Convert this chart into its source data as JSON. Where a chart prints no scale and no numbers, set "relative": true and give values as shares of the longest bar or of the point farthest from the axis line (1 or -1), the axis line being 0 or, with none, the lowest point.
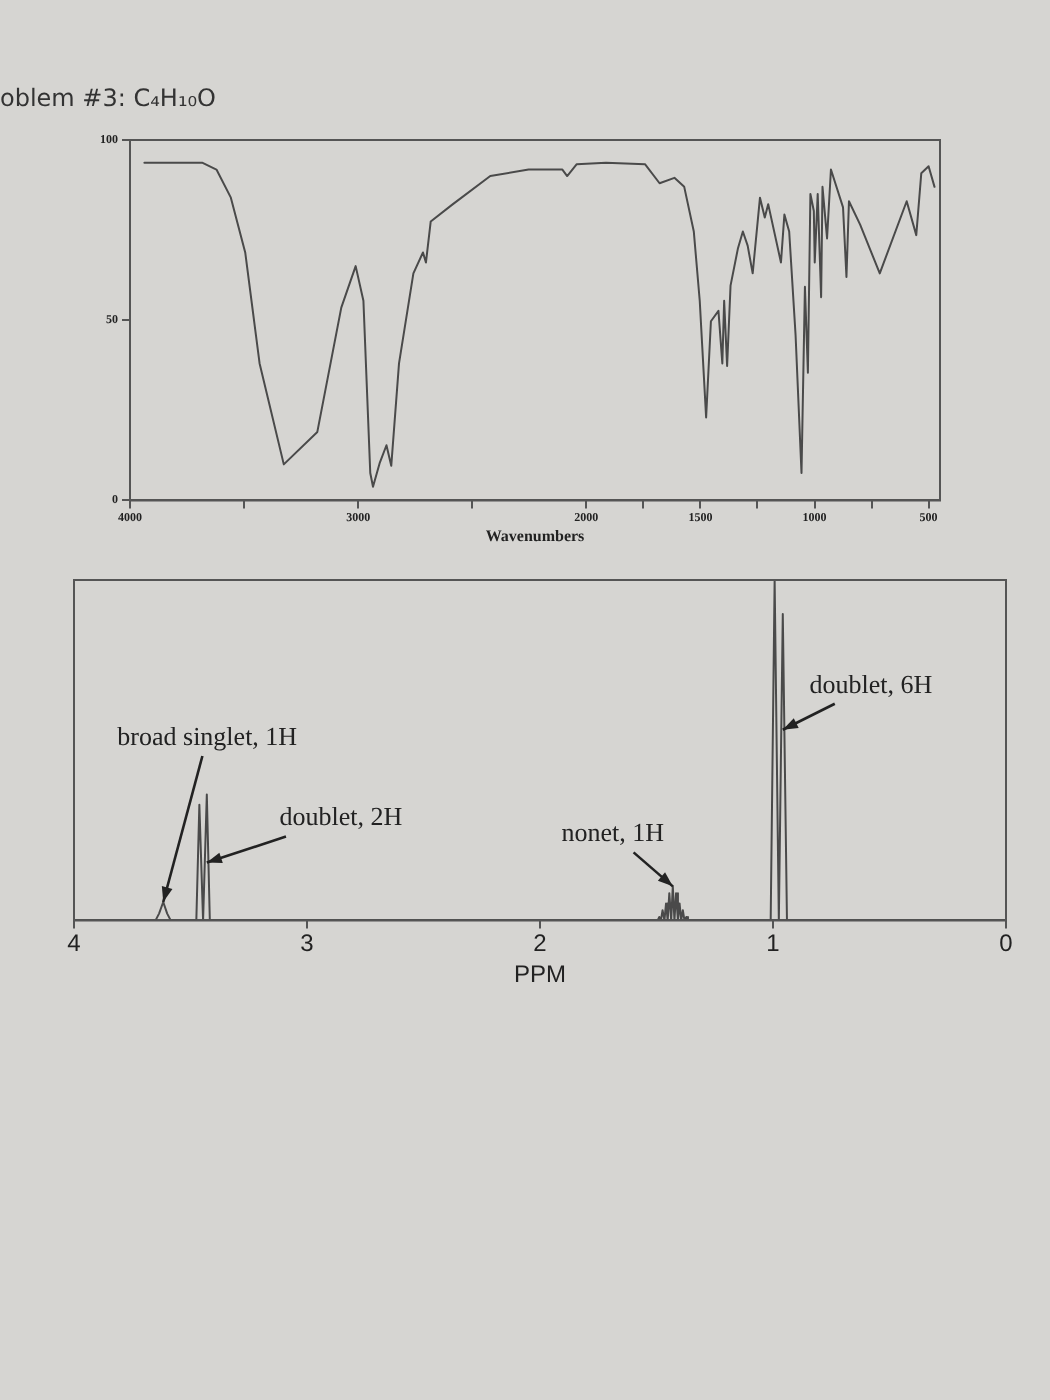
{
  "chart_data": [
    {
      "type": "line",
      "title": "oblem #3: C₄H₁₀O",
      "xlabel": "Wavenumbers",
      "xlim": [
        4000,
        450
      ],
      "ylim": [
        0,
        100
      ],
      "xticks": [
        4000,
        {
          "value": 3500,
          "label": null
        },
        3000,
        {
          "value": 2500,
          "label": null
        },
        2000,
        {
          "value": 1750,
          "label": null
        },
        1500,
        {
          "value": 1250,
          "label": null
        },
        1000,
        {
          "value": 750,
          "label": null
        },
        500
      ],
      "yticks": [
        0,
        50,
        100
      ],
      "series": [
        {
          "color": "#4a4a4a",
          "x": [
            3937,
            3684,
            3621,
            3558,
            3495,
            3432,
            3326,
            3179,
            3074,
            3011,
            2977,
            2947,
            2935,
            2905,
            2876,
            2855,
            2821,
            2758,
            2716,
            2703,
            2682,
            2589,
            2421,
            2253,
            2105,
            2084,
            2042,
            1914,
            1743,
            1679,
            1614,
            1571,
            1529,
            1503,
            1475,
            1454,
            1421,
            1404,
            1396,
            1383,
            1368,
            1336,
            1314,
            1293,
            1271,
            1239,
            1218,
            1203,
            1147,
            1132,
            1111,
            1083,
            1057,
            1042,
            1029,
            1018,
            1003,
            999,
            986,
            971,
            965,
            945,
            928,
            875,
            860,
            849,
            800,
            714,
            596,
            554,
            532,
            500,
            474
          ],
          "values": [
            93.7,
            93.7,
            91.8,
            84,
            68.8,
            38,
            10,
            19,
            53.5,
            65,
            55.4,
            7.6,
            3.8,
            10.5,
            15.3,
            9.6,
            38,
            63,
            68.8,
            66,
            77.4,
            82,
            90,
            91.8,
            91.8,
            90,
            93.3,
            93.7,
            93.3,
            88,
            89.5,
            87,
            74.6,
            55.4,
            23,
            49.7,
            52.6,
            38,
            55.4,
            37.3,
            59.6,
            69.8,
            74.6,
            70.7,
            63,
            84,
            78.5,
            82.2,
            66,
            79.3,
            74.6,
            45.9,
            7.6,
            59.3,
            35.4,
            85,
            80.3,
            66,
            85,
            56.4,
            87,
            72.7,
            91.8,
            81.3,
            62,
            83,
            76.5,
            63,
            83,
            73.6,
            90.8,
            92.7,
            87
          ]
        }
      ],
      "marker": "none",
      "grid": false,
      "legend": false
    },
    {
      "type": "line",
      "xlabel": "PPM",
      "relative": true,
      "xlim": [
        4,
        0
      ],
      "xticks": [
        4,
        3,
        2,
        1,
        0
      ],
      "series": [
        {
          "color": "#4a4a4a",
          "x": [
            4,
            3.65,
            3.635,
            3.617,
            3.6,
            3.585,
            3.475,
            3.462,
            3.446,
            3.43,
            3.417,
            1.495,
            1.488,
            1.481,
            1.474,
            1.466,
            1.459,
            1.452,
            1.445,
            1.437,
            1.43,
            1.423,
            1.416,
            1.408,
            1.401,
            1.394,
            1.387,
            1.38,
            1.372,
            1.365,
            1.01,
            0.993,
            0.975,
            0.958,
            0.94,
            0
          ],
          "values": [
            0,
            0,
            0.02,
            0.054,
            0.02,
            0,
            0,
            0.34,
            0,
            0.37,
            0,
            0,
            0.01,
            0,
            0.03,
            0,
            0.05,
            0,
            0.08,
            0,
            0.1,
            0,
            0.08,
            0,
            0.05,
            0,
            0.03,
            0,
            0.01,
            0,
            0,
            1,
            0,
            0.9,
            0,
            0
          ]
        }
      ],
      "annotations": [
        {
          "text": "broad singlet, 1H",
          "x": 3.617,
          "y": 0.054
        },
        {
          "text": "doublet, 2H",
          "x": 3.43,
          "y": 0.17
        },
        {
          "text": "nonet, 1H",
          "x": 1.43,
          "y": 0.1
        },
        {
          "text": "doublet, 6H",
          "x": 0.958,
          "y": 0.56
        }
      ],
      "marker": "none",
      "grid": false,
      "legend": false
    }
  ]
}
